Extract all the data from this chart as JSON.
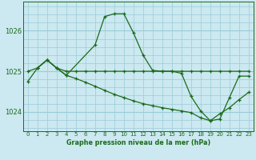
{
  "title": "Graphe pression niveau de la mer (hPa)",
  "bg_color": "#cce8f0",
  "grid_color": "#99ccd9",
  "line_color": "#1a6b1a",
  "xticks": [
    0,
    1,
    2,
    3,
    4,
    5,
    6,
    7,
    8,
    9,
    10,
    11,
    12,
    13,
    14,
    15,
    16,
    17,
    18,
    19,
    20,
    21,
    22,
    23
  ],
  "yticks": [
    1024,
    1025,
    1026
  ],
  "ylim": [
    1023.52,
    1026.72
  ],
  "xlim": [
    -0.5,
    23.5
  ],
  "series1_x": [
    0,
    1,
    2,
    3,
    4,
    5,
    6,
    7,
    8,
    9,
    10,
    11,
    12,
    13,
    14,
    15,
    16,
    17,
    18,
    19,
    20,
    21,
    22,
    23
  ],
  "series1_y": [
    1024.75,
    1025.08,
    1025.28,
    1025.08,
    1025.0,
    1025.0,
    1025.0,
    1025.0,
    1025.0,
    1025.0,
    1025.0,
    1025.0,
    1025.0,
    1025.0,
    1025.0,
    1025.0,
    1025.0,
    1025.0,
    1025.0,
    1025.0,
    1025.0,
    1025.0,
    1025.0,
    1025.0
  ],
  "series2_x": [
    0,
    1,
    2,
    3,
    4,
    5,
    6,
    7,
    8,
    9,
    10,
    11,
    12,
    13,
    14,
    15,
    16,
    17,
    18,
    19,
    20,
    21,
    22,
    23
  ],
  "series2_y": [
    1025.0,
    1025.08,
    1025.28,
    1025.08,
    1024.9,
    1024.82,
    1024.73,
    1024.63,
    1024.53,
    1024.43,
    1024.35,
    1024.27,
    1024.2,
    1024.15,
    1024.1,
    1024.06,
    1024.02,
    1023.98,
    1023.85,
    1023.78,
    1023.95,
    1024.1,
    1024.3,
    1024.48
  ],
  "series3_x": [
    1,
    2,
    3,
    4,
    7,
    8,
    9,
    10,
    11,
    12,
    13,
    14,
    15,
    16,
    17,
    18,
    19,
    20,
    21,
    22,
    23
  ],
  "series3_y": [
    1025.08,
    1025.28,
    1025.08,
    1024.9,
    1025.65,
    1026.35,
    1026.42,
    1026.42,
    1025.95,
    1025.4,
    1025.02,
    1025.0,
    1025.0,
    1024.95,
    1024.38,
    1024.02,
    1023.78,
    1023.82,
    1024.35,
    1024.88,
    1024.88
  ]
}
